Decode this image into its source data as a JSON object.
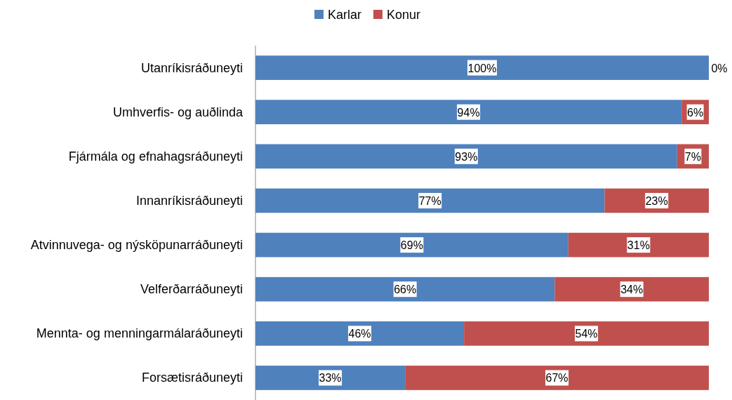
{
  "chart_data": {
    "type": "bar",
    "orientation": "horizontal",
    "stacked": true,
    "legend": "top",
    "tick_labels": "y",
    "categories": [
      "Utanríkisráðuneyti",
      "Umhverfis- og auðlinda",
      "Fjármála og efnahagsráðuneyti",
      "Innanríkisráðuneyti",
      "Atvinnuvega- og nýsköpunarráðuneyti",
      "Velferðarráðuneyti",
      "Mennta- og menningarmálaráðuneyti",
      "Forsætisráðuneyti"
    ],
    "series": [
      {
        "name": "Karlar",
        "color": "#4f81bd",
        "values": [
          100,
          94,
          93,
          77,
          69,
          66,
          46,
          33
        ],
        "value_labels": [
          "100%",
          "94%",
          "93%",
          "77%",
          "69%",
          "66%",
          "46%",
          "33%"
        ]
      },
      {
        "name": "Konur",
        "color": "#c0504d",
        "values": [
          0,
          6,
          7,
          23,
          31,
          34,
          54,
          67
        ],
        "value_labels": [
          "0%",
          "6%",
          "7%",
          "23%",
          "31%",
          "34%",
          "54%",
          "67%"
        ]
      }
    ]
  }
}
